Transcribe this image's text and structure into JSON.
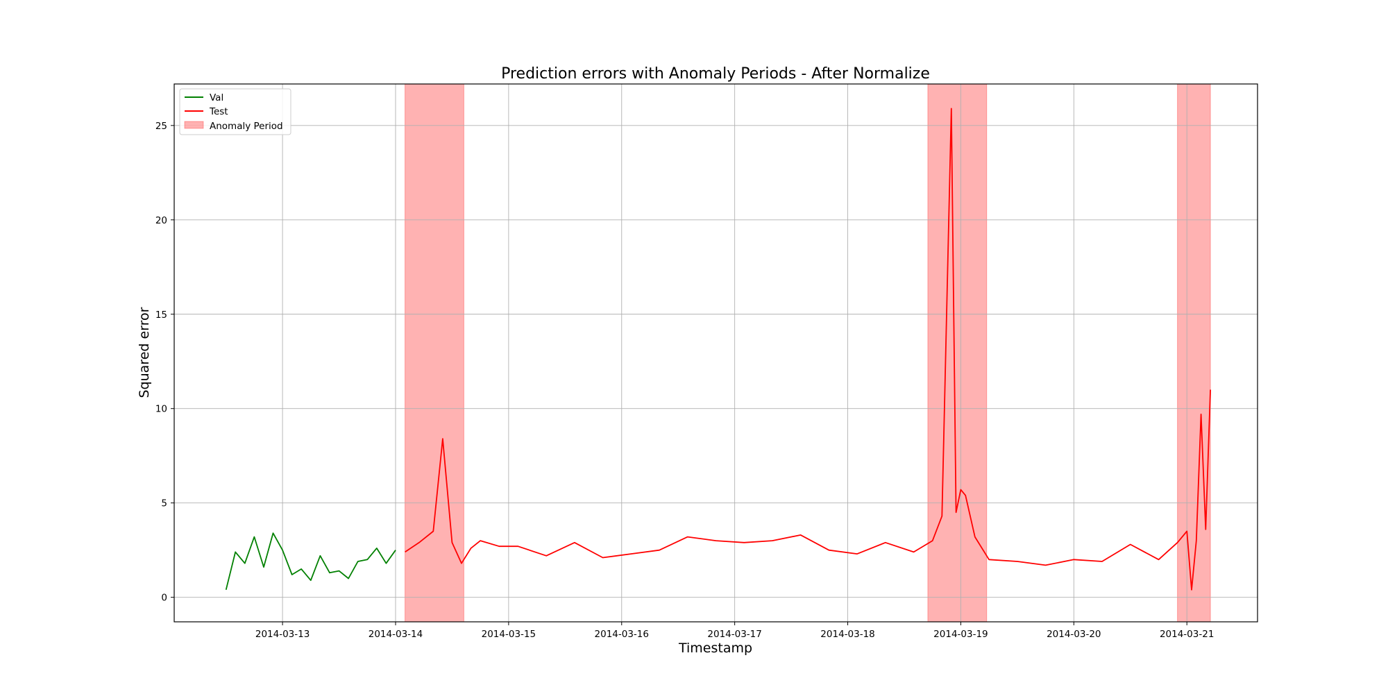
{
  "chart_data": {
    "type": "line",
    "title": "Prediction errors with Anomaly Periods - After Normalize",
    "xlabel": "Timestamp",
    "ylabel": "Squared error",
    "x_axis_type": "date",
    "xlim": [
      "2014-03-12T01:00",
      "2014-03-21T15:00"
    ],
    "ylim": [
      -1.3,
      27.2
    ],
    "xticks": [
      "2014-03-13",
      "2014-03-14",
      "2014-03-15",
      "2014-03-16",
      "2014-03-17",
      "2014-03-18",
      "2014-03-19",
      "2014-03-20",
      "2014-03-21"
    ],
    "yticks": [
      0,
      5,
      10,
      15,
      20,
      25
    ],
    "grid": true,
    "legend_placement": "upper-left",
    "series": [
      {
        "name": "Val",
        "color": "#008000",
        "x": [
          "2014-03-12T12:00",
          "2014-03-12T14:00",
          "2014-03-12T16:00",
          "2014-03-12T18:00",
          "2014-03-12T20:00",
          "2014-03-12T22:00",
          "2014-03-13T00:00",
          "2014-03-13T02:00",
          "2014-03-13T04:00",
          "2014-03-13T06:00",
          "2014-03-13T08:00",
          "2014-03-13T10:00",
          "2014-03-13T12:00",
          "2014-03-13T14:00",
          "2014-03-13T16:00",
          "2014-03-13T18:00",
          "2014-03-13T20:00",
          "2014-03-13T22:00",
          "2014-03-14T00:00"
        ],
        "values": [
          0.4,
          2.4,
          1.8,
          3.2,
          1.6,
          3.4,
          2.5,
          1.2,
          1.5,
          0.9,
          2.2,
          1.3,
          1.4,
          1.0,
          1.9,
          2.0,
          2.6,
          1.8,
          2.5
        ]
      },
      {
        "name": "Test",
        "color": "#ff0000",
        "x": [
          "2014-03-14T02:00",
          "2014-03-14T05:00",
          "2014-03-14T08:00",
          "2014-03-14T10:00",
          "2014-03-14T12:00",
          "2014-03-14T14:00",
          "2014-03-14T16:00",
          "2014-03-14T18:00",
          "2014-03-14T22:00",
          "2014-03-15T02:00",
          "2014-03-15T08:00",
          "2014-03-15T14:00",
          "2014-03-15T20:00",
          "2014-03-16T02:00",
          "2014-03-16T08:00",
          "2014-03-16T14:00",
          "2014-03-16T20:00",
          "2014-03-17T02:00",
          "2014-03-17T08:00",
          "2014-03-17T14:00",
          "2014-03-17T20:00",
          "2014-03-18T02:00",
          "2014-03-18T08:00",
          "2014-03-18T14:00",
          "2014-03-18T18:00",
          "2014-03-18T20:00",
          "2014-03-18T22:00",
          "2014-03-18T23:00",
          "2014-03-19T00:00",
          "2014-03-19T01:00",
          "2014-03-19T03:00",
          "2014-03-19T06:00",
          "2014-03-19T12:00",
          "2014-03-19T18:00",
          "2014-03-20T00:00",
          "2014-03-20T06:00",
          "2014-03-20T12:00",
          "2014-03-20T18:00",
          "2014-03-20T22:00",
          "2014-03-21T00:00",
          "2014-03-21T01:00",
          "2014-03-21T02:00",
          "2014-03-21T03:00",
          "2014-03-21T04:00",
          "2014-03-21T05:00"
        ],
        "values": [
          2.4,
          2.9,
          3.5,
          8.4,
          2.9,
          1.8,
          2.6,
          3.0,
          2.7,
          2.7,
          2.2,
          2.9,
          2.1,
          2.3,
          2.5,
          3.2,
          3.0,
          2.9,
          3.0,
          3.3,
          2.5,
          2.3,
          2.9,
          2.4,
          3.0,
          4.3,
          25.9,
          4.5,
          5.7,
          5.4,
          3.2,
          2.0,
          1.9,
          1.7,
          2.0,
          1.9,
          2.8,
          2.0,
          2.9,
          3.5,
          0.4,
          3.0,
          9.7,
          3.6,
          11.0
        ]
      }
    ],
    "anomaly_periods_label": "Anomaly Period",
    "anomaly_color": "#ff0000",
    "anomaly_periods": [
      [
        "2014-03-14T02:00",
        "2014-03-14T14:30"
      ],
      [
        "2014-03-18T17:00",
        "2014-03-19T05:30"
      ],
      [
        "2014-03-20T22:00",
        "2014-03-21T05:00"
      ]
    ]
  }
}
